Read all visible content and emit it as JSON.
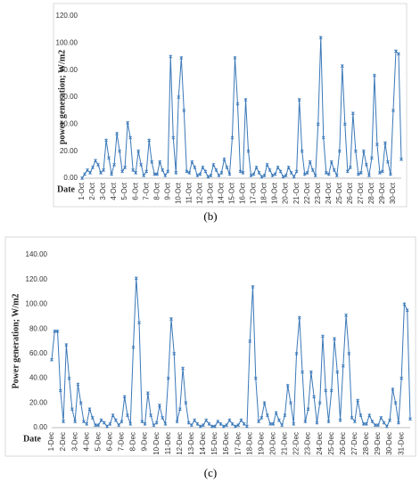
{
  "chart_data": [
    {
      "type": "line",
      "caption": "(b)",
      "y_label": "power generation; W/m2",
      "x_label": "Date",
      "color": "#3a78b8",
      "grid": false,
      "ylim": [
        0,
        120
      ],
      "yticks": [
        {
          "value": 0,
          "label": "0.00"
        },
        {
          "value": 20,
          "label": "20.00"
        },
        {
          "value": 40,
          "label": "40.00"
        },
        {
          "value": 60,
          "label": "60.00"
        },
        {
          "value": 80,
          "label": "80.00"
        },
        {
          "value": 100,
          "label": "100.00"
        },
        {
          "value": 120,
          "label": "120.00"
        }
      ],
      "categories": [
        "1-Oct",
        null,
        null,
        null,
        "2-Oct",
        null,
        null,
        null,
        "3-Oct",
        null,
        null,
        null,
        "4-Oct",
        null,
        null,
        null,
        "5-Oct",
        null,
        null,
        null,
        "6-Oct",
        null,
        null,
        null,
        "7-Oct",
        null,
        null,
        null,
        "8-Oct",
        null,
        null,
        null,
        "9-Oct",
        null,
        null,
        null,
        "10-Oct",
        null,
        null,
        null,
        "11-Oct",
        null,
        null,
        null,
        "12-Oct",
        null,
        null,
        null,
        "13-Oct",
        null,
        null,
        null,
        "14-Oct",
        null,
        null,
        null,
        "15-Oct",
        null,
        null,
        null,
        "16-Oct",
        null,
        null,
        null,
        "17-Oct",
        null,
        null,
        null,
        "18-Oct",
        null,
        null,
        null,
        "19-Oct",
        null,
        null,
        null,
        "20-Oct",
        null,
        null,
        null,
        "21-Oct",
        null,
        null,
        null,
        "22-Oct",
        null,
        null,
        null,
        "23-Oct",
        null,
        null,
        null,
        "24-Oct",
        null,
        null,
        null,
        "25-Oct",
        null,
        null,
        null,
        "26-Oct",
        null,
        null,
        null,
        "27-Oct",
        null,
        null,
        null,
        "28-Oct",
        null,
        null,
        null,
        "29-Oct",
        null,
        null,
        null,
        "30-Oct",
        null,
        null,
        null
      ],
      "values": [
        0,
        3,
        6,
        4,
        8,
        13,
        10,
        4,
        6,
        28,
        15,
        3,
        10,
        33,
        20,
        5,
        8,
        41,
        30,
        6,
        4,
        20,
        10,
        2,
        5,
        28,
        12,
        3,
        3,
        12,
        6,
        2,
        5,
        90,
        30,
        4,
        60,
        89,
        50,
        5,
        4,
        12,
        8,
        2,
        3,
        8,
        5,
        1,
        2,
        10,
        6,
        2,
        4,
        14,
        8,
        3,
        30,
        89,
        55,
        5,
        4,
        58,
        20,
        2,
        3,
        8,
        4,
        1,
        2,
        10,
        6,
        2,
        3,
        8,
        5,
        1,
        2,
        8,
        4,
        1,
        5,
        58,
        20,
        3,
        4,
        12,
        6,
        2,
        40,
        104,
        30,
        4,
        3,
        12,
        6,
        2,
        20,
        83,
        40,
        5,
        8,
        48,
        20,
        3,
        4,
        20,
        10,
        2,
        15,
        76,
        25,
        4,
        5,
        26,
        12,
        3,
        50,
        94,
        92,
        14
      ]
    },
    {
      "type": "line",
      "caption": "(c)",
      "y_label": "Power generation; W/m2",
      "x_label": "Date",
      "color": "#3a78b8",
      "grid": false,
      "ylim": [
        0,
        140
      ],
      "yticks": [
        {
          "value": 0,
          "label": "0.00"
        },
        {
          "value": 20,
          "label": "20.00"
        },
        {
          "value": 40,
          "label": "40.00"
        },
        {
          "value": 60,
          "label": "60.00"
        },
        {
          "value": 80,
          "label": "80.00"
        },
        {
          "value": 100,
          "label": "100.00"
        },
        {
          "value": 120,
          "label": "120.00"
        },
        {
          "value": 140,
          "label": "140.00"
        }
      ],
      "categories": [
        "1-Dec",
        null,
        null,
        null,
        "2-Dec",
        null,
        null,
        null,
        "3-Dec",
        null,
        null,
        null,
        "4-Dec",
        null,
        null,
        null,
        "5-Dec",
        null,
        null,
        null,
        "6-Dec",
        null,
        null,
        null,
        "7-Dec",
        null,
        null,
        null,
        "8-Dec",
        null,
        null,
        null,
        "9-Dec",
        null,
        null,
        null,
        "10-Dec",
        null,
        null,
        null,
        "11-Dec",
        null,
        null,
        null,
        "12-Dec",
        null,
        null,
        null,
        "13-Dec",
        null,
        null,
        null,
        "14-Dec",
        null,
        null,
        null,
        "15-Dec",
        null,
        null,
        null,
        "16-Dec",
        null,
        null,
        null,
        "17-Dec",
        null,
        null,
        null,
        "18-Dec",
        null,
        null,
        null,
        "19-Dec",
        null,
        null,
        null,
        "20-Dec",
        null,
        null,
        null,
        "21-Dec",
        null,
        null,
        null,
        "22-Dec",
        null,
        null,
        null,
        "23-Dec",
        null,
        null,
        null,
        "24-Dec",
        null,
        null,
        null,
        "25-Dec",
        null,
        null,
        null,
        "26-Dec",
        null,
        null,
        null,
        "27-Dec",
        null,
        null,
        null,
        "28-Dec",
        null,
        null,
        null,
        "29-Dec",
        null,
        null,
        null,
        "30-Dec",
        null,
        null,
        null,
        "31-Dec",
        null,
        null,
        null
      ],
      "values": [
        55,
        78,
        78,
        30,
        5,
        67,
        40,
        15,
        5,
        35,
        20,
        5,
        3,
        15,
        8,
        2,
        2,
        6,
        4,
        1,
        3,
        10,
        6,
        2,
        5,
        25,
        10,
        3,
        65,
        121,
        85,
        5,
        3,
        28,
        10,
        2,
        4,
        18,
        8,
        3,
        40,
        88,
        60,
        5,
        15,
        48,
        20,
        4,
        2,
        6,
        3,
        1,
        2,
        6,
        3,
        1,
        1,
        5,
        3,
        1,
        2,
        6,
        3,
        1,
        2,
        6,
        3,
        1,
        70,
        114,
        40,
        5,
        8,
        20,
        10,
        3,
        3,
        12,
        6,
        2,
        10,
        34,
        20,
        3,
        60,
        89,
        45,
        5,
        15,
        45,
        25,
        4,
        20,
        74,
        30,
        5,
        30,
        72,
        45,
        6,
        50,
        91,
        60,
        8,
        5,
        22,
        10,
        3,
        3,
        10,
        5,
        2,
        2,
        8,
        4,
        1,
        6,
        31,
        20,
        4,
        40,
        100,
        95,
        7
      ]
    }
  ]
}
